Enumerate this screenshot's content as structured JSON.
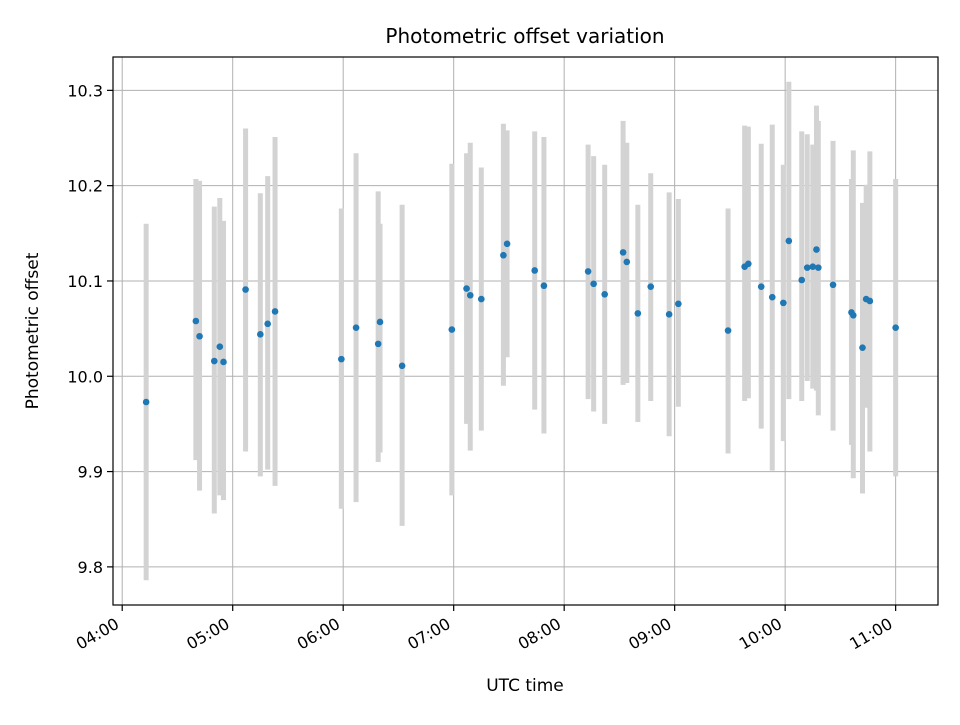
{
  "chart_data": {
    "type": "scatter",
    "title": "Photometric offset variation",
    "xlabel": "UTC time",
    "ylabel": "Photometric offset",
    "x_is_time": true,
    "xlim": [
      "03:55",
      "11:23"
    ],
    "ylim": [
      9.76,
      10.335
    ],
    "xticks": [
      "04:00",
      "05:00",
      "06:00",
      "07:00",
      "08:00",
      "09:00",
      "10:00",
      "11:00"
    ],
    "yticks": [
      9.8,
      9.9,
      10.0,
      10.1,
      10.2,
      10.3
    ],
    "ytick_labels": [
      "9.8",
      "9.9",
      "10.0",
      "10.1",
      "10.2",
      "10.3"
    ],
    "grid": true,
    "colors": {
      "point": "#1f77b4",
      "errorbar": "#d3d3d3",
      "grid": "#b0b0b0"
    },
    "series": [
      {
        "x": [
          "04:13",
          "04:40",
          "04:42",
          "04:50",
          "04:53",
          "04:55",
          "05:07",
          "05:15",
          "05:19",
          "05:23",
          "05:59",
          "06:07",
          "06:19",
          "06:20",
          "06:32",
          "06:59",
          "07:07",
          "07:09",
          "07:15",
          "07:27",
          "07:29",
          "07:44",
          "07:49",
          "08:13",
          "08:16",
          "08:22",
          "08:32",
          "08:34",
          "08:40",
          "08:47",
          "08:57",
          "09:02",
          "09:29",
          "09:38",
          "09:40",
          "09:47",
          "09:53",
          "09:59",
          "10:02",
          "10:09",
          "10:12",
          "10:15",
          "10:17",
          "10:18",
          "10:26",
          "10:36",
          "10:37",
          "10:42",
          "10:44",
          "10:46",
          "11:00"
        ],
        "y": [
          9.973,
          10.058,
          10.042,
          10.016,
          10.031,
          10.015,
          10.091,
          10.044,
          10.055,
          10.068,
          10.018,
          10.051,
          10.034,
          10.057,
          10.011,
          10.049,
          10.092,
          10.085,
          10.081,
          10.127,
          10.139,
          10.111,
          10.095,
          10.11,
          10.097,
          10.086,
          10.13,
          10.12,
          10.066,
          10.094,
          10.065,
          10.076,
          10.048,
          10.115,
          10.118,
          10.094,
          10.083,
          10.077,
          10.142,
          10.101,
          10.114,
          10.115,
          10.133,
          10.114,
          10.096,
          10.067,
          10.064,
          10.03,
          10.081,
          10.079,
          10.051
        ],
        "y_low": [
          9.786,
          9.912,
          9.88,
          9.856,
          9.875,
          9.87,
          9.921,
          9.895,
          9.902,
          9.885,
          9.861,
          9.868,
          9.91,
          9.92,
          9.843,
          9.875,
          9.95,
          9.922,
          9.943,
          9.99,
          10.02,
          9.965,
          9.94,
          9.976,
          9.963,
          9.95,
          9.991,
          9.993,
          9.952,
          9.974,
          9.937,
          9.968,
          9.919,
          9.974,
          9.977,
          9.945,
          9.901,
          9.932,
          9.976,
          9.974,
          9.995,
          9.987,
          9.985,
          9.959,
          9.943,
          9.928,
          9.893,
          9.877,
          9.967,
          9.921,
          9.895
        ],
        "y_high": [
          10.16,
          10.207,
          10.205,
          10.178,
          10.187,
          10.163,
          10.26,
          10.192,
          10.21,
          10.251,
          10.176,
          10.234,
          10.194,
          10.16,
          10.18,
          10.223,
          10.234,
          10.245,
          10.219,
          10.265,
          10.258,
          10.257,
          10.251,
          10.243,
          10.231,
          10.222,
          10.268,
          10.245,
          10.18,
          10.213,
          10.193,
          10.186,
          10.176,
          10.263,
          10.262,
          10.244,
          10.264,
          10.222,
          10.309,
          10.257,
          10.254,
          10.243,
          10.284,
          10.268,
          10.247,
          10.207,
          10.237,
          10.182,
          10.201,
          10.236,
          10.207
        ]
      }
    ]
  }
}
